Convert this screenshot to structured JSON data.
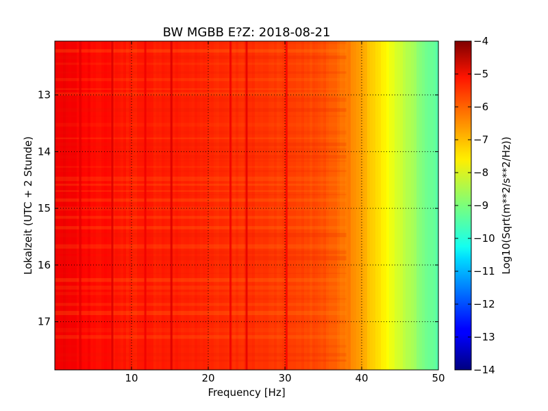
{
  "chart_data": {
    "type": "heatmap",
    "title": "BW MGBB E?Z: 2018-08-21",
    "xlabel": "Frequency [Hz]",
    "ylabel": "Lokalzeit (UTC + 2 Stunde)",
    "xlim": [
      0,
      50
    ],
    "ylim": [
      12.05,
      17.85
    ],
    "y_inverted": true,
    "x_ticks": [
      10,
      20,
      30,
      40,
      50
    ],
    "y_ticks": [
      13,
      14,
      15,
      16,
      17
    ],
    "grid": true,
    "colormap": "jet",
    "colorbar": {
      "label": "Log10(Sqrt(m**2/s**2/Hz))",
      "range": [
        -14,
        -4
      ],
      "ticks": [
        -4,
        -5,
        -6,
        -7,
        -8,
        -9,
        -10,
        -11,
        -12,
        -13,
        -14
      ]
    },
    "spectrum_profile": {
      "description_of_values": "approximate mean log10 amplitude across the recording at each frequency",
      "frequency_hz": [
        0,
        5,
        10,
        15,
        20,
        25,
        30,
        35,
        38,
        40,
        42,
        44,
        46,
        48,
        50
      ],
      "log10_amplitude": [
        -5.1,
        -5.3,
        -5.5,
        -5.5,
        -5.6,
        -5.7,
        -5.8,
        -6.0,
        -6.4,
        -6.9,
        -7.4,
        -8.0,
        -8.5,
        -9.0,
        -9.4
      ]
    },
    "spectral_lines": [
      {
        "frequency_hz": 3.3,
        "log10_amplitude": -5.0
      },
      {
        "frequency_hz": 7.5,
        "log10_amplitude": -4.9
      },
      {
        "frequency_hz": 11.8,
        "log10_amplitude": -5.1
      },
      {
        "frequency_hz": 15.2,
        "log10_amplitude": -4.9
      },
      {
        "frequency_hz": 22.9,
        "log10_amplitude": -5.1
      },
      {
        "frequency_hz": 25.0,
        "log10_amplitude": -5.0
      },
      {
        "frequency_hz": 30.2,
        "log10_amplitude": -5.2
      }
    ]
  }
}
